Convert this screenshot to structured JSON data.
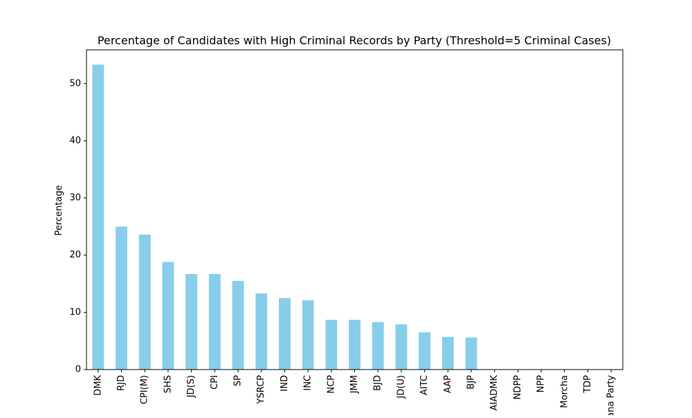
{
  "chart_data": {
    "type": "bar",
    "title": "Percentage of Candidates with High Criminal Records by Party (Threshold=5 Criminal Cases)",
    "xlabel": "",
    "ylabel": "Percentage",
    "ylim": [
      0,
      55.9
    ],
    "yticks": [
      0,
      10,
      20,
      30,
      40,
      50
    ],
    "grid": false,
    "legend": "none",
    "bar_color": "#87CEEB",
    "categories": [
      "DMK",
      "RJD",
      "CPI(M)",
      "SHS",
      "JD(S)",
      "CPI",
      "SP",
      "YSRCP",
      "IND",
      "INC",
      "NCP",
      "JMM",
      "BJD",
      "JD(U)",
      "AITC",
      "AAP",
      "BJP",
      "AIADMK",
      "NDPP",
      "NPP",
      "Morcha",
      "TDP",
      "Jana Party"
    ],
    "values": [
      53.3,
      25.0,
      23.6,
      18.8,
      16.7,
      16.7,
      15.5,
      13.3,
      12.5,
      12.1,
      8.7,
      8.7,
      8.3,
      7.9,
      6.5,
      5.7,
      5.6,
      0,
      0,
      0,
      0,
      0,
      0
    ]
  }
}
